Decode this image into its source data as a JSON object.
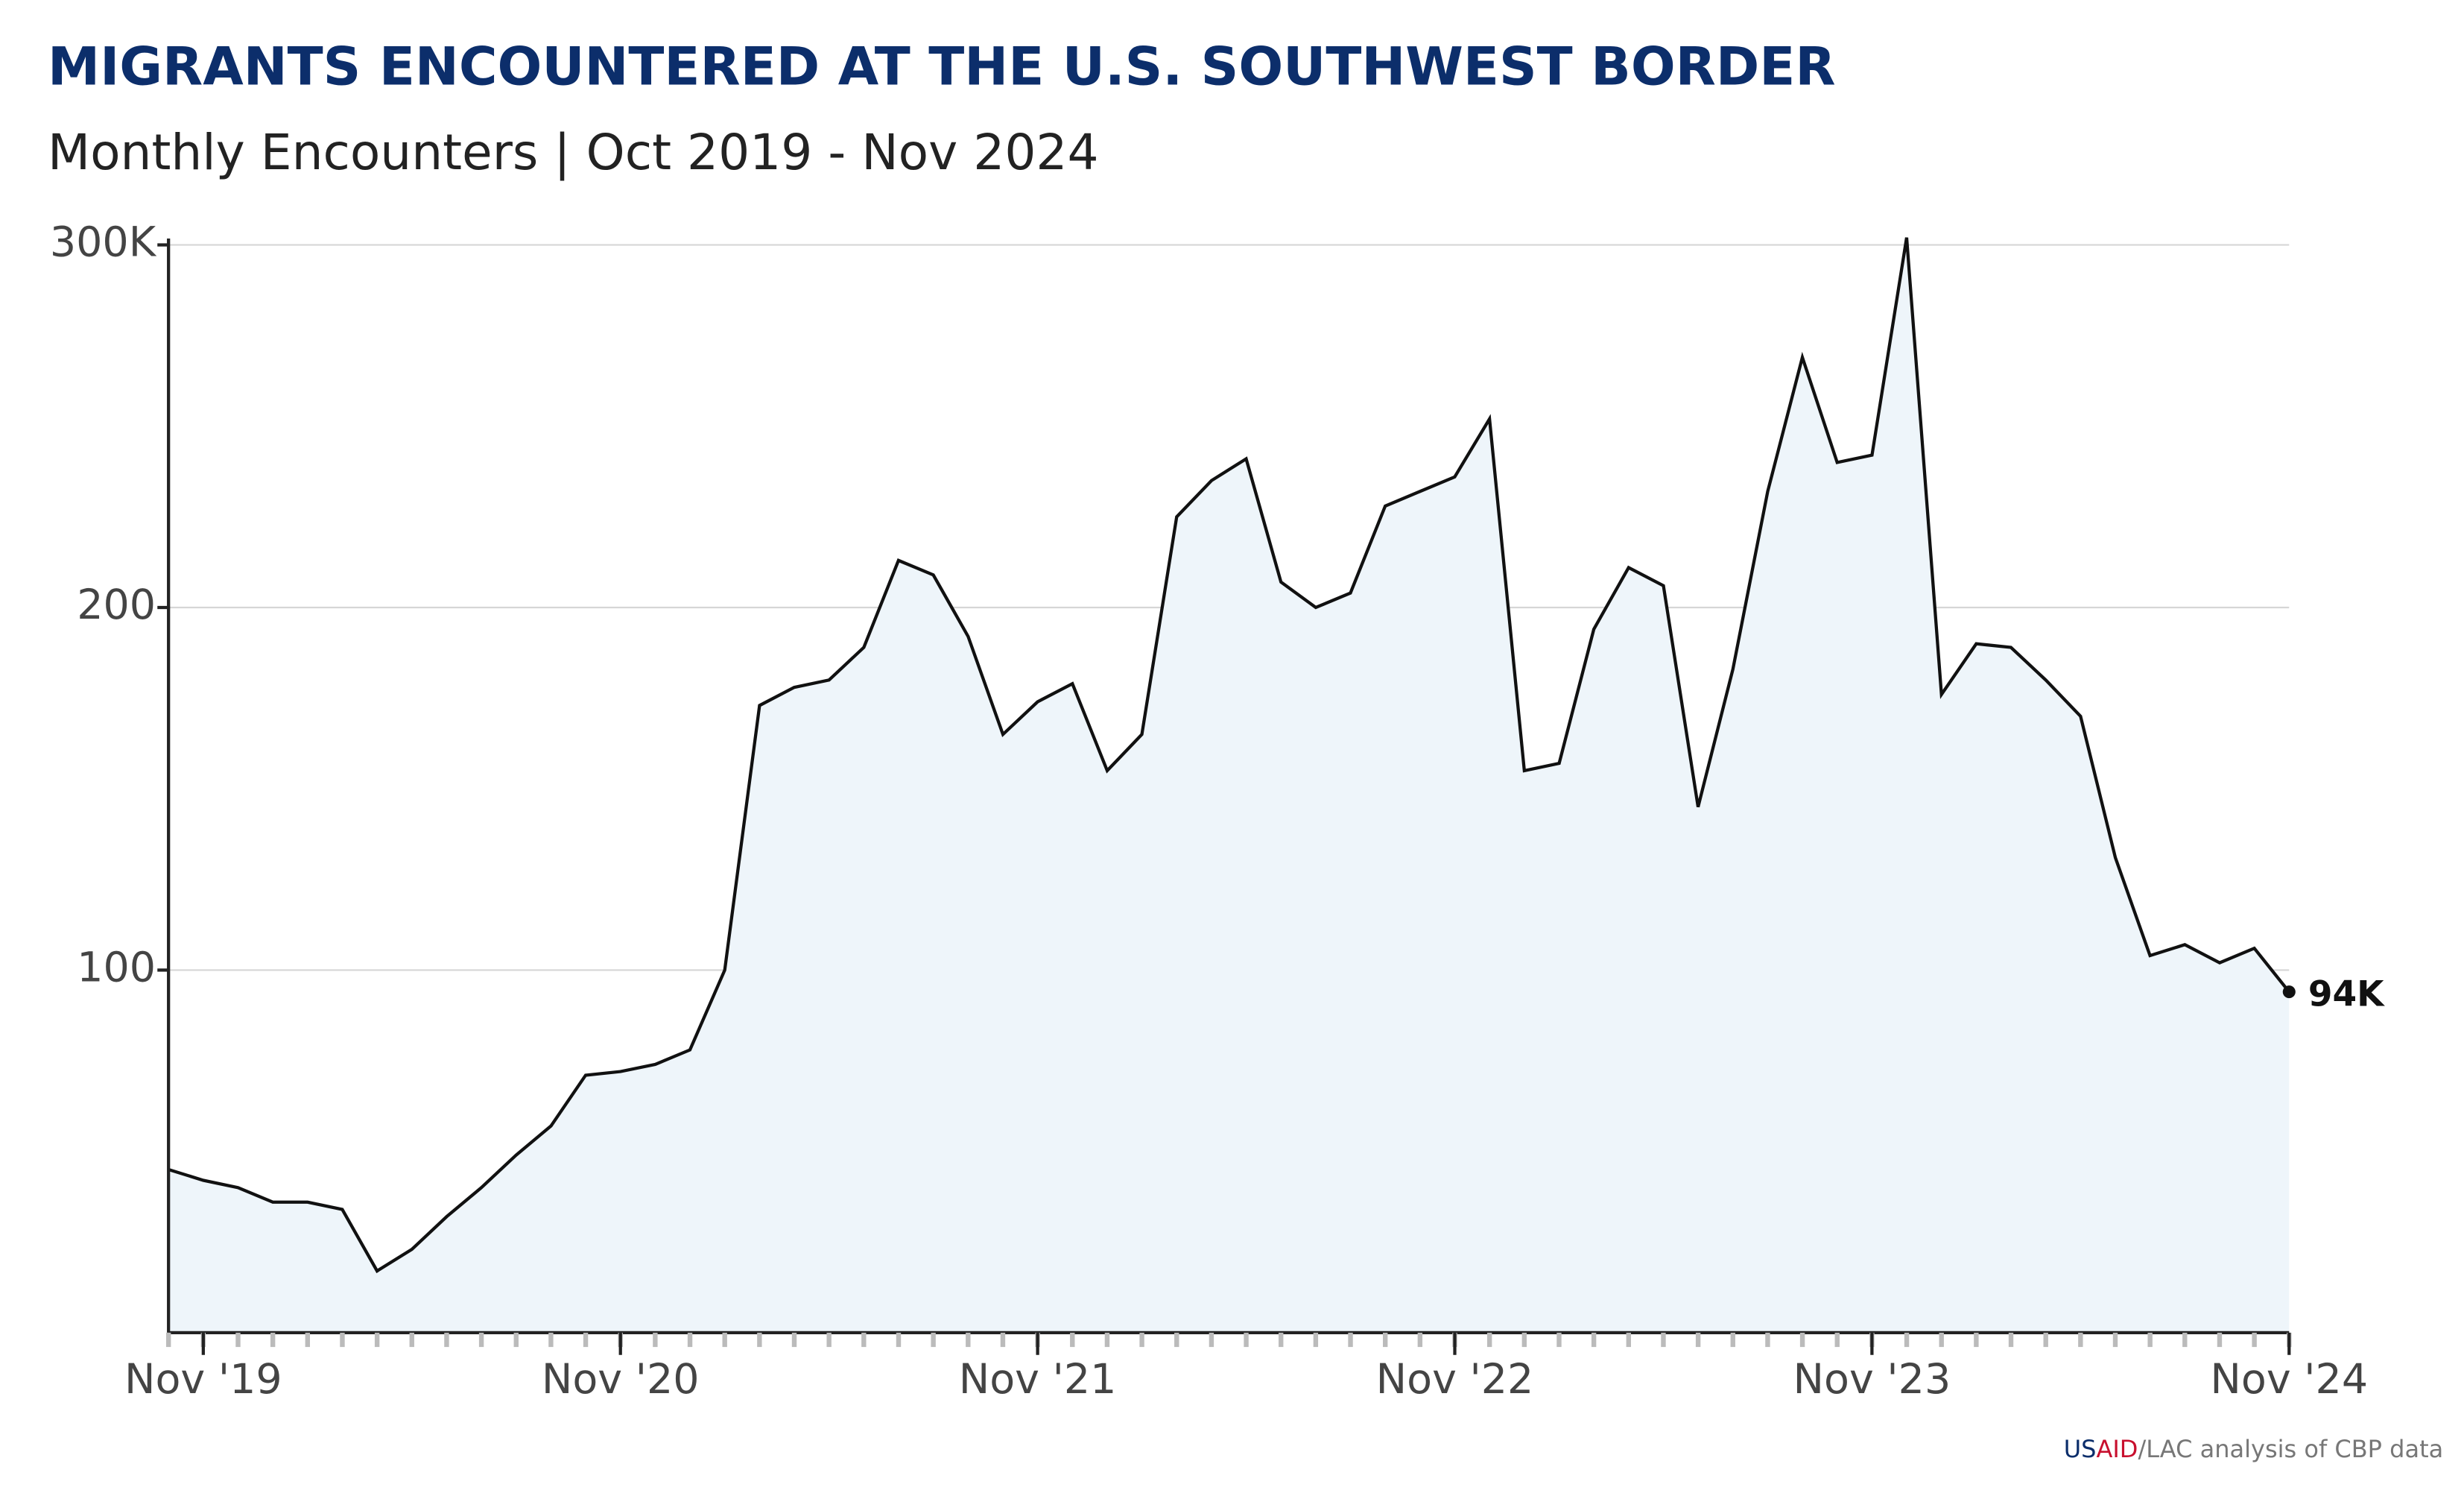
{
  "chart_data": {
    "type": "area",
    "title": "MIGRANTS ENCOUNTERED AT THE U.S. SOUTHWEST BORDER",
    "subtitle": "Monthly Encounters | Oct 2019 - Nov 2024",
    "source": [
      "US",
      "AID",
      "/LAC analysis of CBP data"
    ],
    "x": [
      "2019-10",
      "2019-11",
      "2019-12",
      "2020-01",
      "2020-02",
      "2020-03",
      "2020-04",
      "2020-05",
      "2020-06",
      "2020-07",
      "2020-08",
      "2020-09",
      "2020-10",
      "2020-11",
      "2020-12",
      "2021-01",
      "2021-02",
      "2021-03",
      "2021-04",
      "2021-05",
      "2021-06",
      "2021-07",
      "2021-08",
      "2021-09",
      "2021-10",
      "2021-11",
      "2021-12",
      "2022-01",
      "2022-02",
      "2022-03",
      "2022-04",
      "2022-05",
      "2022-06",
      "2022-07",
      "2022-08",
      "2022-09",
      "2022-10",
      "2022-11",
      "2022-12",
      "2023-01",
      "2023-02",
      "2023-03",
      "2023-04",
      "2023-05",
      "2023-06",
      "2023-07",
      "2023-08",
      "2023-09",
      "2023-10",
      "2023-11",
      "2023-12",
      "2024-01",
      "2024-02",
      "2024-03",
      "2024-04",
      "2024-05",
      "2024-06",
      "2024-07",
      "2024-08",
      "2024-09",
      "2024-10",
      "2024-11"
    ],
    "series": [
      {
        "color": "#111111",
        "fill": "#eef5fa",
        "values": [
          45,
          42,
          40,
          36,
          36,
          34,
          17,
          23,
          32,
          40,
          49,
          57,
          71,
          72,
          74,
          78,
          100,
          173,
          178,
          180,
          189,
          213,
          209,
          192,
          165,
          174,
          179,
          155,
          165,
          225,
          235,
          241,
          207,
          200,
          204,
          228,
          232,
          236,
          252,
          155,
          157,
          194,
          211,
          206,
          145,
          183,
          232,
          269,
          240,
          242,
          302,
          176,
          190,
          189,
          180,
          170,
          131,
          104,
          107,
          102,
          106,
          94
        ],
        "value_labels": [
          null,
          null,
          null,
          null,
          null,
          null,
          null,
          null,
          null,
          null,
          null,
          null,
          null,
          null,
          null,
          null,
          null,
          null,
          null,
          null,
          null,
          null,
          null,
          null,
          null,
          null,
          null,
          null,
          null,
          null,
          null,
          null,
          null,
          null,
          null,
          null,
          null,
          null,
          null,
          null,
          null,
          null,
          null,
          null,
          null,
          null,
          null,
          null,
          null,
          null,
          null,
          null,
          null,
          null,
          null,
          null,
          null,
          null,
          null,
          null,
          null,
          "94K"
        ]
      }
    ],
    "xticks": [
      {
        "value": "2019-11",
        "label": "Nov '19"
      },
      {
        "value": "2020-11",
        "label": "Nov '20"
      },
      {
        "value": "2021-11",
        "label": "Nov '21"
      },
      {
        "value": "2022-11",
        "label": "Nov '22"
      },
      {
        "value": "2023-11",
        "label": "Nov '23"
      },
      {
        "value": "2024-11",
        "label": "Nov '24"
      }
    ],
    "ylim": [
      0,
      300
    ],
    "yticks": [
      100,
      200,
      {
        "value": 300,
        "label": "300K"
      }
    ],
    "grid": true
  }
}
